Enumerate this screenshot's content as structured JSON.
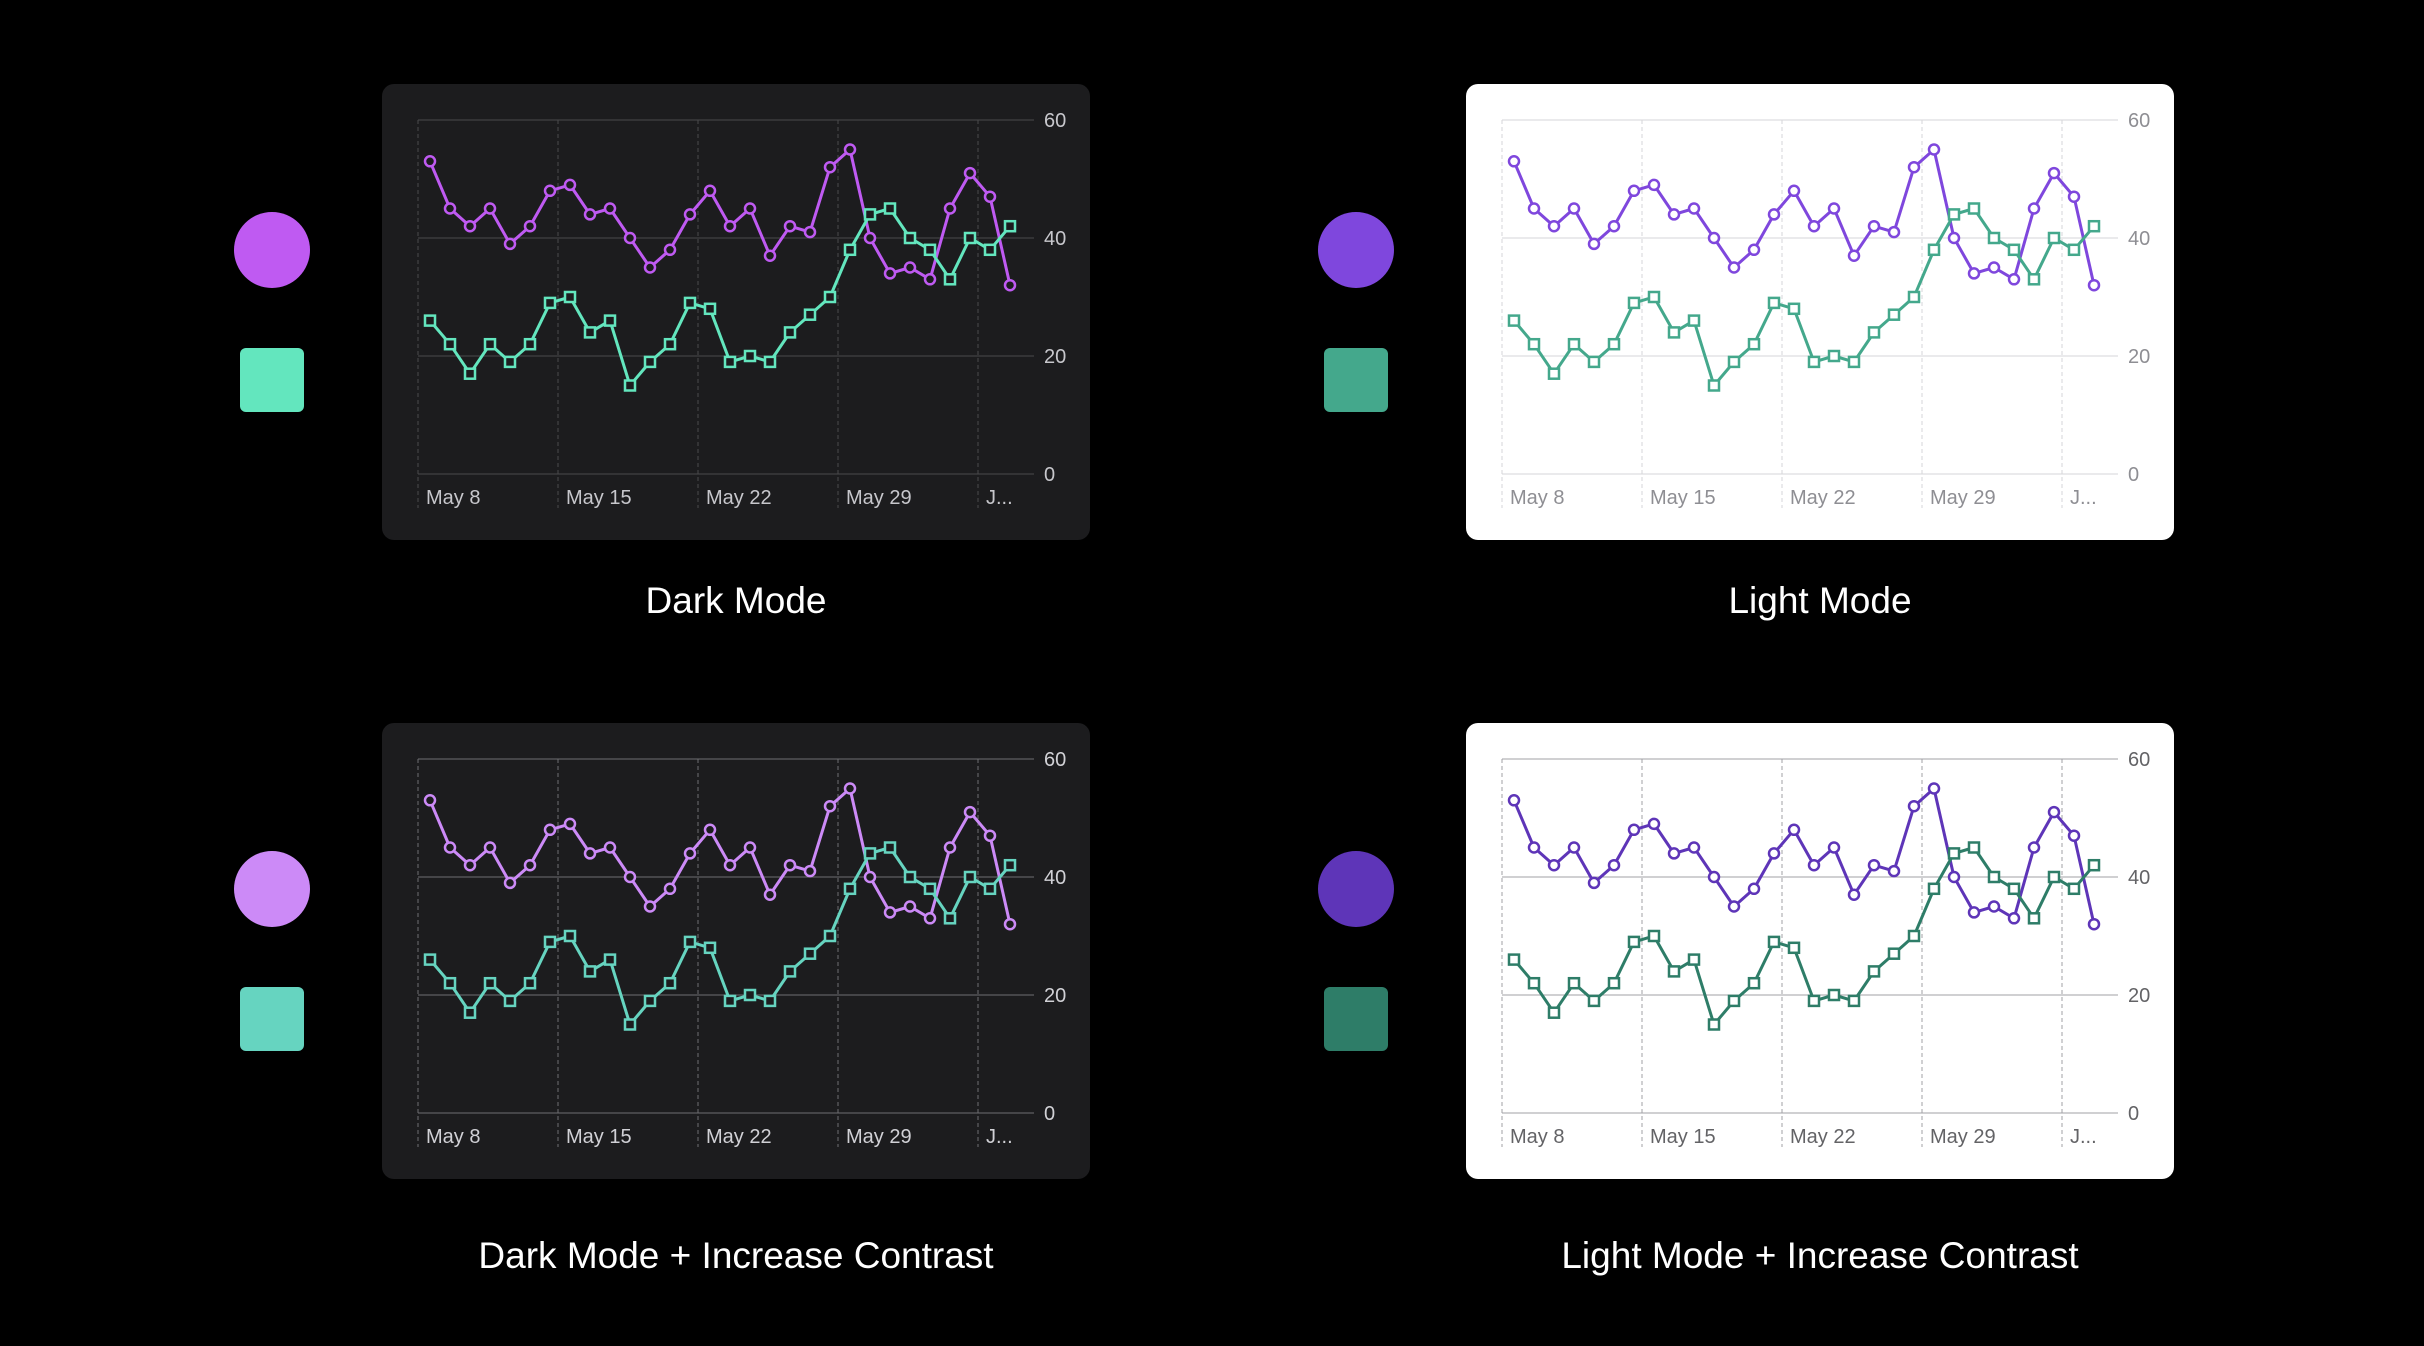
{
  "panels": [
    {
      "caption": "Dark Mode",
      "theme": "dark",
      "colors": {
        "purple": "#bf5af2",
        "teal": "#63e6be"
      },
      "card_bg": "#1c1c1e",
      "grid": "#4a4a4c",
      "tick_text": "#c7c7cc"
    },
    {
      "caption": "Light Mode",
      "theme": "light",
      "colors": {
        "purple": "#7f47dd",
        "teal": "#44a88c"
      },
      "card_bg": "#ffffff",
      "grid": "#d6d6d8",
      "tick_text": "#8e8e93"
    },
    {
      "caption": "Dark Mode + Increase Contrast",
      "theme": "dark",
      "colors": {
        "purple": "#cc8af7",
        "teal": "#66d4c0"
      },
      "card_bg": "#1c1c1e",
      "grid": "#6e6e72",
      "tick_text": "#d1d1d6"
    },
    {
      "caption": "Light Mode + Increase Contrast",
      "theme": "light",
      "colors": {
        "purple": "#5e35b8",
        "teal": "#2e7d68"
      },
      "card_bg": "#ffffff",
      "grid": "#a0a0a4",
      "tick_text": "#636366"
    }
  ],
  "chart_data": {
    "type": "line",
    "x_tick_labels": [
      "May 8",
      "May 15",
      "May 22",
      "May 29",
      "J..."
    ],
    "y_tick_labels": [
      "0",
      "20",
      "40",
      "60"
    ],
    "ylim": [
      0,
      60
    ],
    "y_ticks": [
      0,
      20,
      40,
      60
    ],
    "x_start_day": 7,
    "x_days_shown": 29,
    "grid": true,
    "series": [
      {
        "marker": "circle",
        "values": [
          53,
          45,
          42,
          45,
          39,
          42,
          48,
          49,
          44,
          45,
          40,
          35,
          38,
          44,
          48,
          42,
          45,
          37,
          42,
          41,
          52,
          55,
          40,
          34,
          35,
          33,
          45,
          51,
          47,
          32
        ]
      },
      {
        "marker": "square",
        "values": [
          26,
          22,
          17,
          22,
          19,
          22,
          29,
          30,
          24,
          26,
          15,
          19,
          22,
          29,
          28,
          19,
          20,
          19,
          24,
          27,
          30,
          38,
          44,
          45,
          40,
          38,
          33,
          40,
          38,
          42
        ]
      }
    ]
  }
}
